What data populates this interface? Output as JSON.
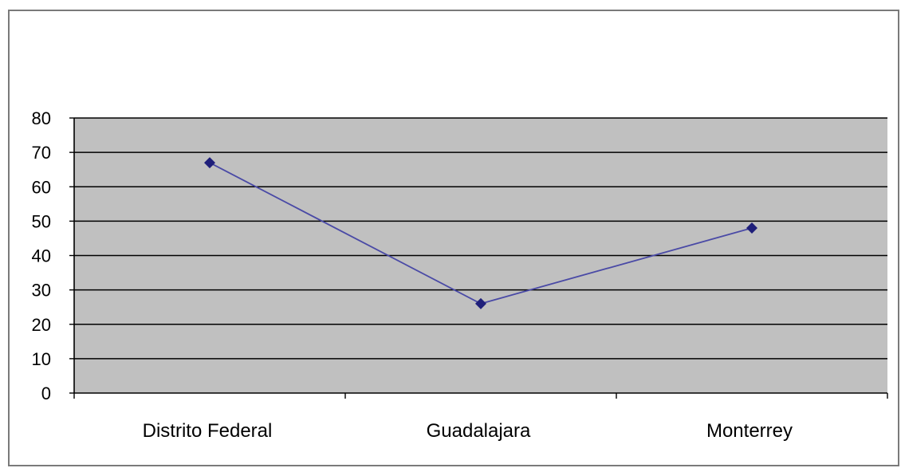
{
  "chart_data": {
    "type": "line",
    "title": "",
    "xlabel": "",
    "ylabel": "",
    "categories": [
      "Distrito Federal",
      "Guadalajara",
      "Monterrey"
    ],
    "series": [
      {
        "values": [
          67,
          26,
          48
        ]
      }
    ],
    "ylim": [
      0,
      80
    ],
    "yticks": [
      0,
      10,
      20,
      30,
      40,
      50,
      60,
      70,
      80
    ],
    "grid": true,
    "legend": "none",
    "colors": {
      "line": "#4a4aa6",
      "marker": "#1f1f7a",
      "plot_background": "#c0c0c0",
      "gridline": "#000000",
      "axis": "#000000",
      "frame_border": "#7a7a7a"
    }
  }
}
